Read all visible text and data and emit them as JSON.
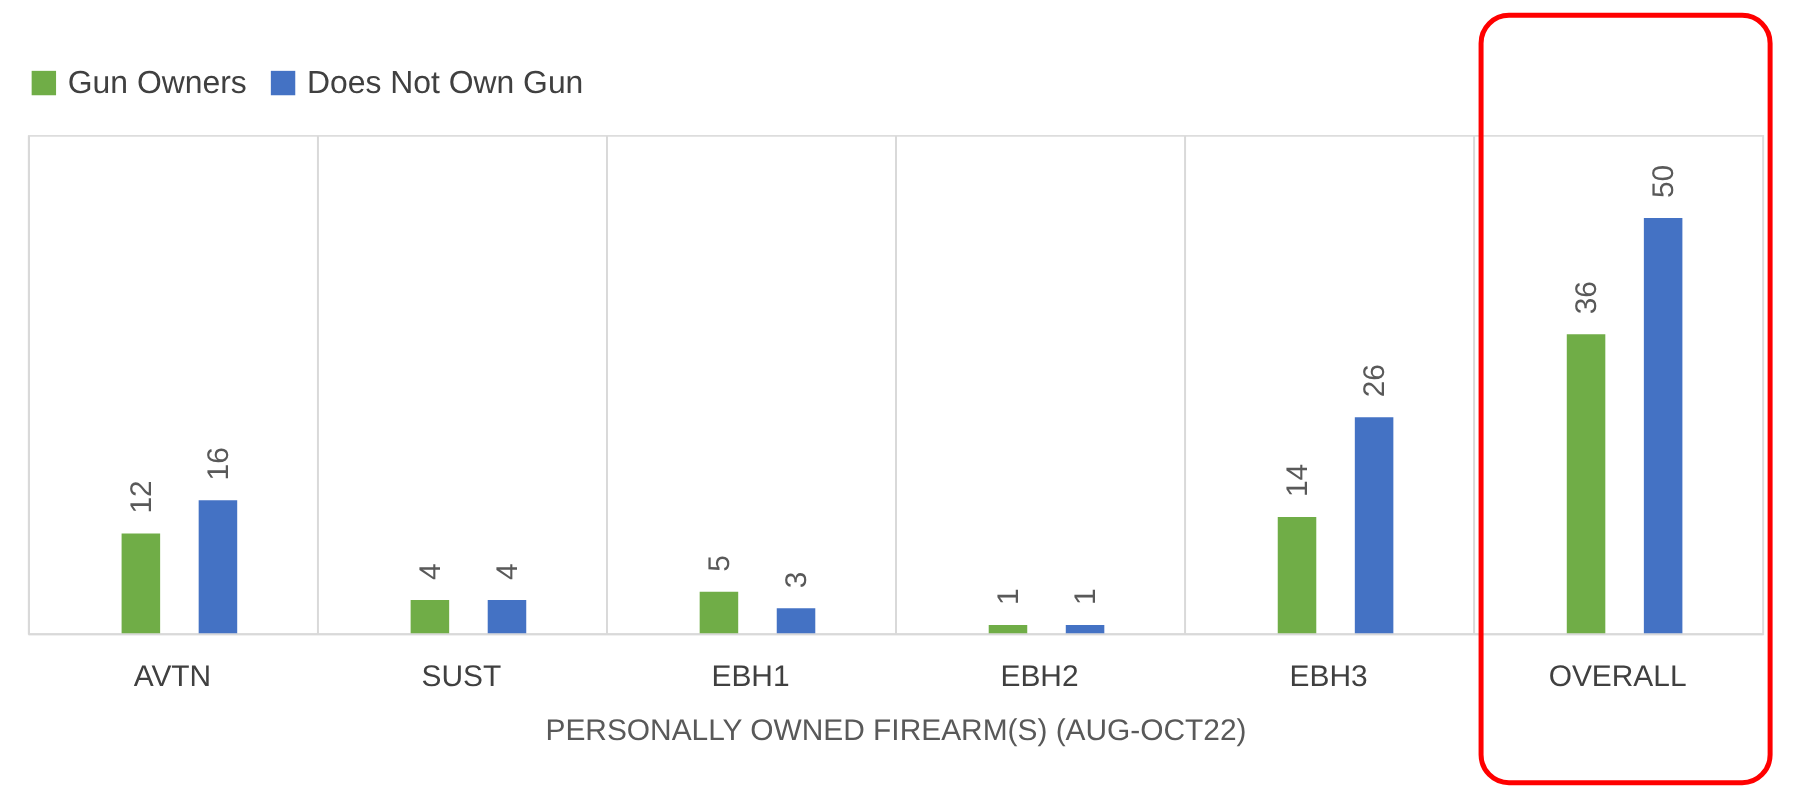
{
  "chart_data": {
    "type": "bar",
    "xlabel": "PERSONALLY OWNED FIREARM(S) (AUG-OCT22)",
    "categories": [
      "AVTN",
      "SUST",
      "EBH1",
      "EBH2",
      "EBH3",
      "OVERALL"
    ],
    "series": [
      {
        "name": "Gun Owners",
        "color": "#70ad47",
        "values": [
          12,
          4,
          5,
          1,
          14,
          36
        ]
      },
      {
        "name": "Does Not Own Gun",
        "color": "#4472c4",
        "values": [
          16,
          4,
          3,
          1,
          26,
          50
        ]
      }
    ],
    "data_labels": true,
    "legend": "top",
    "grid": "x"
  }
}
